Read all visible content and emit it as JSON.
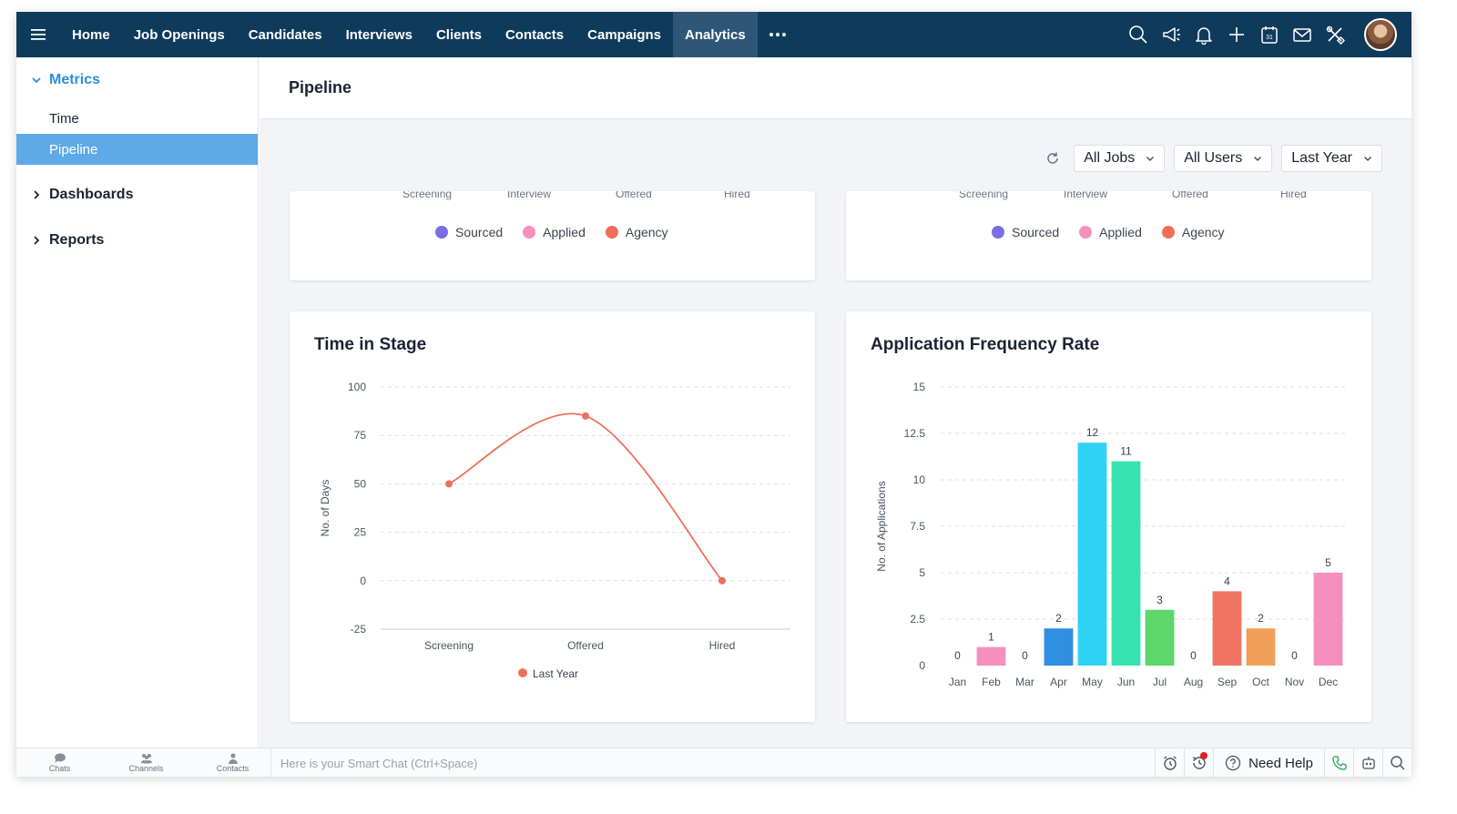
{
  "topbar": {
    "nav": [
      "Home",
      "Job Openings",
      "Candidates",
      "Interviews",
      "Clients",
      "Contacts",
      "Campaigns",
      "Analytics"
    ],
    "active": "Analytics",
    "icons": [
      "search-icon",
      "megaphone-icon",
      "bell-icon",
      "plus-icon",
      "calendar-icon",
      "mail-icon",
      "tools-icon"
    ],
    "calendar_day": "31"
  },
  "sidebar": {
    "metrics": {
      "label": "Metrics",
      "items": [
        "Time",
        "Pipeline"
      ],
      "selected": "Pipeline"
    },
    "dashboards": "Dashboards",
    "reports": "Reports"
  },
  "page": {
    "title": "Pipeline"
  },
  "filters": {
    "jobs": "All Jobs",
    "users": "All Users",
    "period": "Last Year"
  },
  "top_cards": {
    "axis_labels": [
      "Screening",
      "Interview",
      "Offered",
      "Hired"
    ],
    "legend": [
      {
        "label": "Sourced",
        "color": "#7b6ee0"
      },
      {
        "label": "Applied",
        "color": "#f58fbe"
      },
      {
        "label": "Agency",
        "color": "#ef6f5a"
      }
    ]
  },
  "chart_data": [
    {
      "type": "line",
      "title": "Time in Stage",
      "categories": [
        "Screening",
        "Offered",
        "Hired"
      ],
      "series": [
        {
          "name": "Last Year",
          "values": [
            50,
            85,
            0
          ],
          "color": "#ef6f5a"
        }
      ],
      "ylabel": "No. of Days",
      "xlabel": "",
      "ylim": [
        -25,
        100
      ],
      "yticks": [
        100,
        75,
        50,
        25,
        0,
        -25
      ],
      "grid": true,
      "legend": "bottom"
    },
    {
      "type": "bar",
      "title": "Application Frequency Rate",
      "categories": [
        "Jan",
        "Feb",
        "Mar",
        "Apr",
        "May",
        "Jun",
        "Jul",
        "Aug",
        "Sep",
        "Oct",
        "Nov",
        "Dec"
      ],
      "values": [
        0,
        1,
        0,
        2,
        12,
        11,
        3,
        0,
        4,
        2,
        0,
        5
      ],
      "colors": [
        "#f58fbe",
        "#f58fbe",
        "#2f8fe0",
        "#2f8fe0",
        "#2fd2f5",
        "#37e3b0",
        "#5dd66b",
        "#5dd66b",
        "#ef7562",
        "#f0a05a",
        "#f58fbe",
        "#f58fbe"
      ],
      "ylabel": "No. of Applications",
      "xlabel": "",
      "ylim": [
        0,
        15
      ],
      "yticks": [
        15,
        12.5,
        10,
        7.5,
        5,
        2.5,
        0
      ],
      "grid": true
    }
  ],
  "bottombar": {
    "tabs": [
      "Chats",
      "Channels",
      "Contacts"
    ],
    "smartchat_placeholder": "Here is your Smart Chat (Ctrl+Space)",
    "need_help": "Need Help"
  }
}
